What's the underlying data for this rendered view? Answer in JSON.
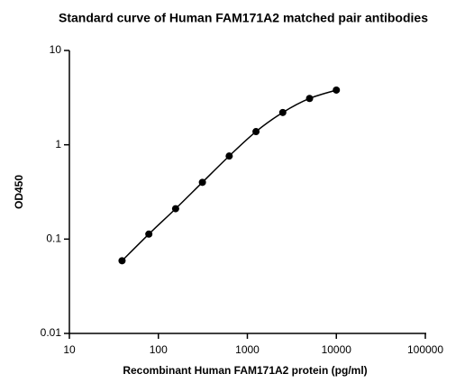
{
  "chart_data": {
    "type": "scatter",
    "title": "Standard curve of Human FAM171A2 matched pair antibodies",
    "x_label": "Recombinant Human FAM171A2 protein (pg/ml)",
    "y_label": "OD450",
    "x": [
      39.0625,
      78.125,
      156.25,
      312.5,
      625,
      1250,
      2500,
      5000,
      10000
    ],
    "series": [
      {
        "name": "OD450",
        "color": "#000000",
        "values": [
          0.059,
          0.113,
          0.21,
          0.4,
          0.76,
          1.38,
          2.2,
          3.1,
          3.8
        ]
      }
    ],
    "xlim": [
      10,
      100000
    ],
    "xticks": [
      10,
      100,
      1000,
      10000,
      100000
    ],
    "ylim": [
      0.01,
      10
    ],
    "yticks": [
      0.01,
      0.1,
      1,
      10
    ],
    "xscale": "log",
    "yscale": "log",
    "fit_line": true
  }
}
